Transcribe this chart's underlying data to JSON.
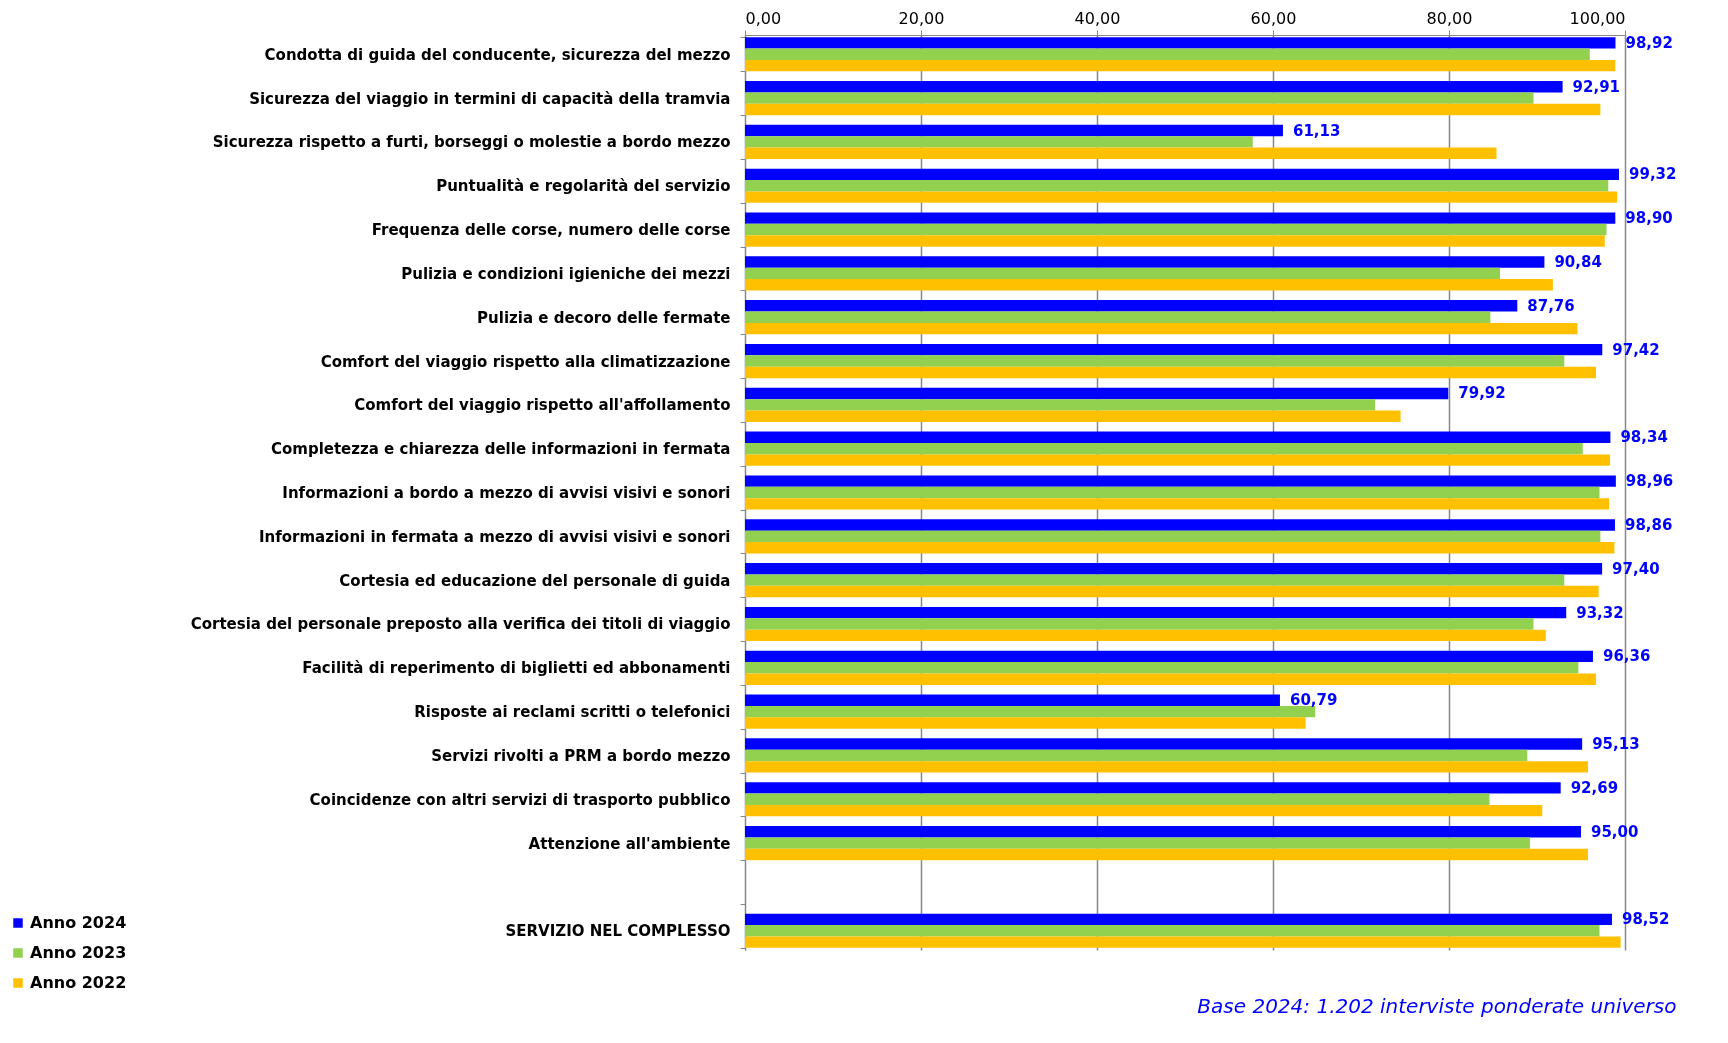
{
  "chart_data": {
    "type": "bar",
    "orientation": "horizontal",
    "categories": [
      "Condotta di guida del conducente, sicurezza del mezzo",
      "Sicurezza del viaggio in termini di capacità della tramvia",
      "Sicurezza rispetto a furti, borseggi o molestie a bordo mezzo",
      "Puntualità e regolarità del servizio",
      "Frequenza delle corse, numero delle corse",
      "Pulizia e condizioni igieniche dei mezzi",
      "Pulizia e decoro delle fermate",
      "Comfort del viaggio rispetto alla climatizzazione",
      "Comfort del viaggio rispetto all'affollamento",
      "Completezza e chiarezza delle informazioni in fermata",
      "Informazioni a bordo a mezzo di avvisi visivi e sonori",
      "Informazioni in fermata a mezzo di avvisi visivi e sonori",
      "Cortesia ed educazione del personale di guida",
      "Cortesia del personale preposto alla verifica dei titoli di viaggio",
      "Facilità di reperimento di biglietti ed abbonamenti",
      "Risposte ai reclami scritti o telefonici",
      "Servizi rivolti a PRM a bordo mezzo",
      "Coincidenze con altri servizi di trasporto pubblico",
      "Attenzione all'ambiente",
      null,
      "SERVIZIO NEL COMPLESSO"
    ],
    "series": [
      {
        "name": "Anno 2024",
        "color": "#0000ff",
        "values": [
          98.92,
          92.91,
          61.13,
          99.32,
          98.9,
          90.84,
          87.76,
          97.42,
          79.92,
          98.34,
          98.96,
          98.86,
          97.4,
          93.32,
          96.36,
          60.79,
          95.13,
          92.69,
          95.0,
          null,
          98.52
        ],
        "value_labels": [
          "98,92",
          "92,91",
          "61,13",
          "99,32",
          "98,90",
          "90,84",
          "87,76",
          "97,42",
          "79,92",
          "98,34",
          "98,96",
          "98,86",
          "97,40",
          "93,32",
          "96,36",
          "60,79",
          "95,13",
          "92,69",
          "95,00",
          null,
          "98,52"
        ]
      },
      {
        "name": "Anno 2023",
        "color": "#92d050",
        "values": [
          96.0,
          89.6,
          57.7,
          98.1,
          97.9,
          85.8,
          84.7,
          93.1,
          71.6,
          95.2,
          97.1,
          97.2,
          93.1,
          89.6,
          94.7,
          64.8,
          88.9,
          84.6,
          89.2,
          null,
          97.1
        ]
      },
      {
        "name": "Anno 2022",
        "color": "#ffc000",
        "values": [
          98.9,
          97.2,
          85.4,
          99.1,
          97.7,
          91.8,
          94.6,
          96.7,
          74.5,
          98.3,
          98.2,
          98.8,
          97.0,
          91.0,
          96.7,
          63.7,
          95.8,
          90.6,
          95.8,
          null,
          99.5
        ]
      }
    ],
    "xlim": [
      0,
      100
    ],
    "xticks": [
      {
        "value": 0,
        "label": "0,00"
      },
      {
        "value": 20,
        "label": "20,00"
      },
      {
        "value": 40,
        "label": "40,00"
      },
      {
        "value": 60,
        "label": "60,00"
      },
      {
        "value": 80,
        "label": "80,00"
      },
      {
        "value": 100,
        "label": "100,00"
      }
    ],
    "grid": "x",
    "legend": "bottom left",
    "annotations": [
      "Base 2024: 1.202 interviste ponderate universo"
    ]
  }
}
